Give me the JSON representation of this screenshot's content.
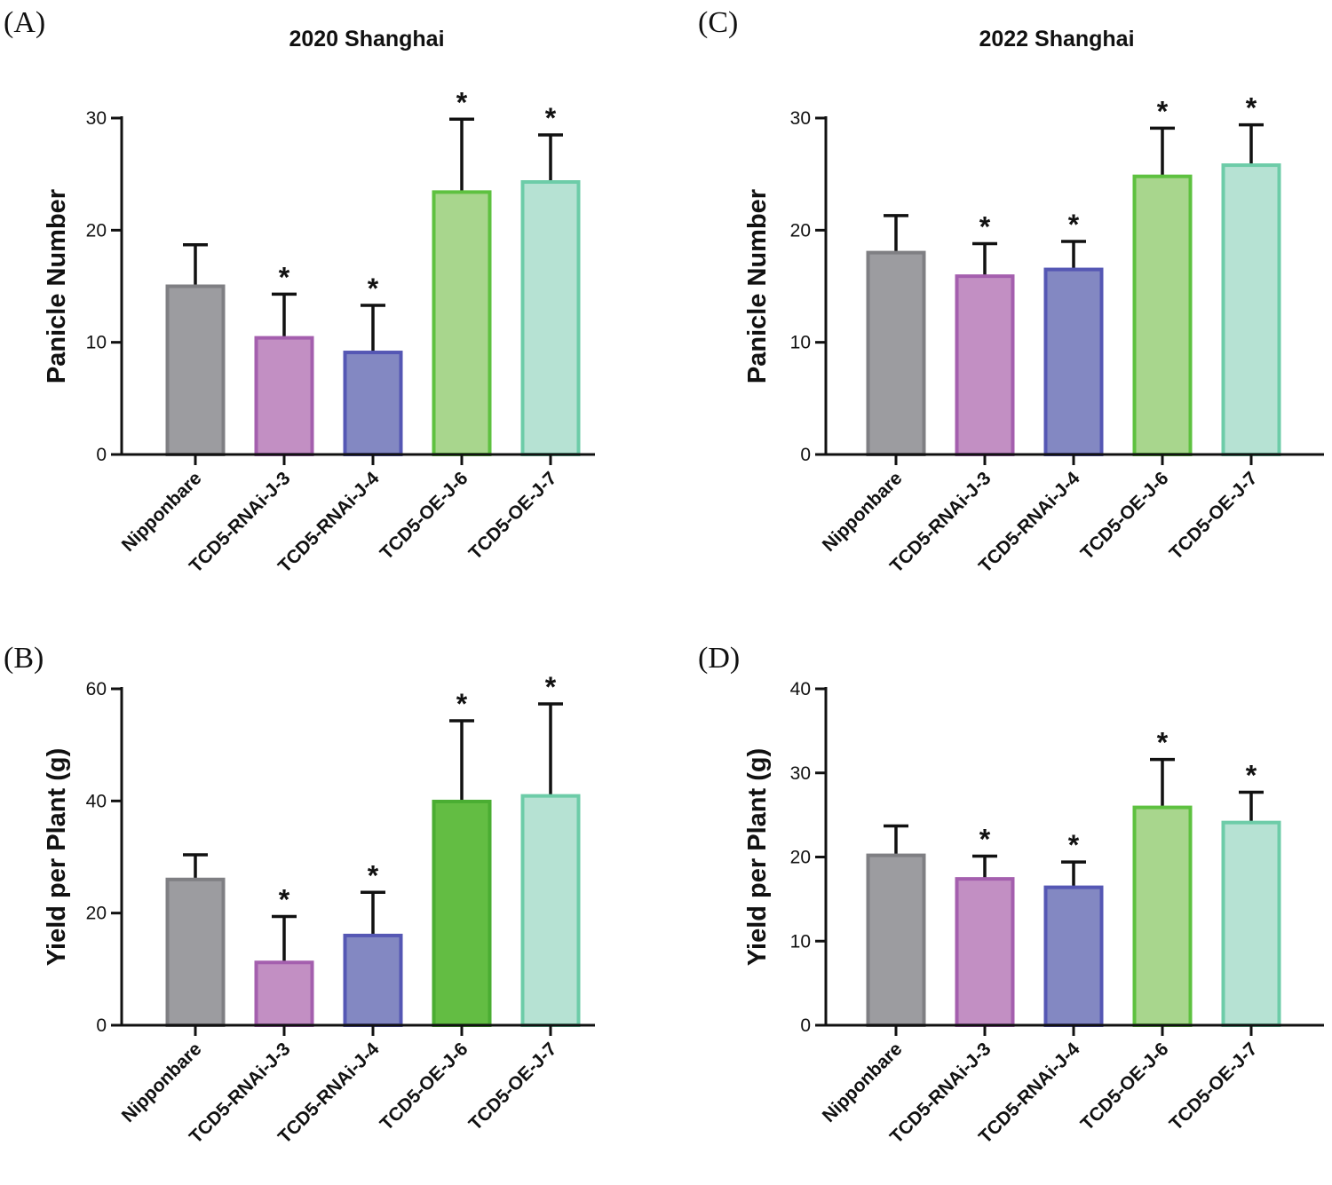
{
  "colors": {
    "Nipponbare": {
      "fill": "#9c9ca0",
      "stroke": "#7f7f83"
    },
    "TCD5-RNAi-J-3": {
      "fill": "#c28fc3",
      "stroke": "#a45fae"
    },
    "TCD5-RNAi-J-4": {
      "fill": "#8388c2",
      "stroke": "#5557b4"
    },
    "TCD5-OE-J-6": {
      "fill": "#a8d68d",
      "stroke": "#5ec140"
    },
    "TCD5-OE-J-6-solid": {
      "fill": "#63bd43",
      "stroke": "#4aad32"
    },
    "TCD5-OE-J-7": {
      "fill": "#b6e2d3",
      "stroke": "#6dcca8"
    },
    "errorbar": "#111111",
    "axis": "#111111"
  },
  "chart_data": [
    {
      "panel": "(A)",
      "type": "bar",
      "title": "2020 Shanghai",
      "ylabel": "Panicle Number",
      "xlabel": "",
      "ylim": [
        0,
        30
      ],
      "yticks": [
        "0",
        "10",
        "20",
        "30"
      ],
      "categories": [
        "Nipponbare",
        "TCD5-RNAi-J-3",
        "TCD5-RNAi-J-4",
        "TCD5-OE-J-6",
        "TCD5-OE-J-7"
      ],
      "values": [
        15.0,
        10.4,
        9.1,
        23.4,
        24.3
      ],
      "errors": [
        3.7,
        3.9,
        4.2,
        6.5,
        4.2
      ],
      "significance": [
        "",
        "*",
        "*",
        "*",
        "*"
      ],
      "fill_keys": [
        "Nipponbare",
        "TCD5-RNAi-J-3",
        "TCD5-RNAi-J-4",
        "TCD5-OE-J-6",
        "TCD5-OE-J-7"
      ]
    },
    {
      "panel": "(B)",
      "type": "bar",
      "title": "",
      "ylabel": "Yield per Plant (g)",
      "xlabel": "",
      "ylim": [
        0,
        60
      ],
      "yticks": [
        "0",
        "20",
        "40",
        "60"
      ],
      "categories": [
        "Nipponbare",
        "TCD5-RNAi-J-3",
        "TCD5-RNAi-J-4",
        "TCD5-OE-J-6",
        "TCD5-OE-J-7"
      ],
      "values": [
        26.0,
        11.2,
        16.0,
        39.9,
        40.9
      ],
      "errors": [
        4.4,
        8.2,
        7.7,
        14.4,
        16.4
      ],
      "significance": [
        "",
        "*",
        "*",
        "*",
        "*"
      ],
      "fill_keys": [
        "Nipponbare",
        "TCD5-RNAi-J-3",
        "TCD5-RNAi-J-4",
        "TCD5-OE-J-6-solid",
        "TCD5-OE-J-7"
      ]
    },
    {
      "panel": "(C)",
      "type": "bar",
      "title": "2022 Shanghai",
      "ylabel": "Panicle Number",
      "xlabel": "",
      "ylim": [
        0,
        30
      ],
      "yticks": [
        "0",
        "10",
        "20",
        "30"
      ],
      "categories": [
        "Nipponbare",
        "TCD5-RNAi-J-3",
        "TCD5-RNAi-J-4",
        "TCD5-OE-J-6",
        "TCD5-OE-J-7"
      ],
      "values": [
        18.0,
        15.9,
        16.5,
        24.8,
        25.8
      ],
      "errors": [
        3.3,
        2.9,
        2.5,
        4.3,
        3.6
      ],
      "significance": [
        "",
        "*",
        "*",
        "*",
        "*"
      ],
      "fill_keys": [
        "Nipponbare",
        "TCD5-RNAi-J-3",
        "TCD5-RNAi-J-4",
        "TCD5-OE-J-6",
        "TCD5-OE-J-7"
      ]
    },
    {
      "panel": "(D)",
      "type": "bar",
      "title": "",
      "ylabel": "Yield per Plant (g)",
      "xlabel": "",
      "ylim": [
        0,
        40
      ],
      "yticks": [
        "0",
        "10",
        "20",
        "30",
        "40"
      ],
      "categories": [
        "Nipponbare",
        "TCD5-RNAi-J-3",
        "TCD5-RNAi-J-4",
        "TCD5-OE-J-6",
        "TCD5-OE-J-7"
      ],
      "values": [
        20.2,
        17.4,
        16.4,
        25.9,
        24.1
      ],
      "errors": [
        3.5,
        2.7,
        3.0,
        5.7,
        3.6
      ],
      "significance": [
        "",
        "*",
        "*",
        "*",
        "*"
      ],
      "fill_keys": [
        "Nipponbare",
        "TCD5-RNAi-J-3",
        "TCD5-RNAi-J-4",
        "TCD5-OE-J-6",
        "TCD5-OE-J-7"
      ]
    }
  ]
}
